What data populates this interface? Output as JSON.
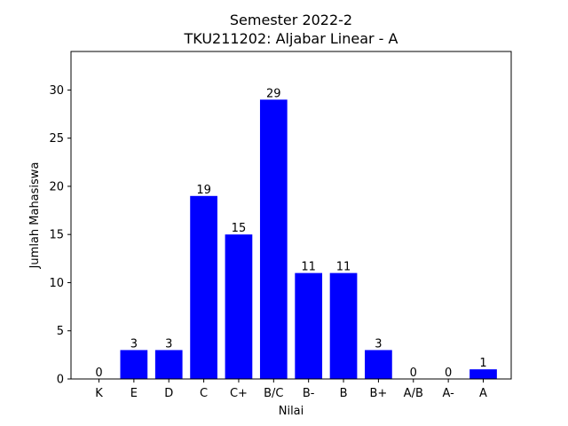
{
  "chart_data": {
    "type": "bar",
    "title": "Semester 2022-2",
    "subtitle": "TKU211202: Aljabar Linear - A",
    "xlabel": "Nilai",
    "ylabel": "Jumlah Mahasiswa",
    "categories": [
      "K",
      "E",
      "D",
      "C",
      "C+",
      "B/C",
      "B-",
      "B",
      "B+",
      "A/B",
      "A-",
      "A"
    ],
    "values": [
      0,
      3,
      3,
      19,
      15,
      29,
      11,
      11,
      3,
      0,
      0,
      1
    ],
    "value_labels": [
      "0",
      "3",
      "3",
      "19",
      "15",
      "29",
      "11",
      "11",
      "3",
      "0",
      "0",
      "1"
    ],
    "ylim": [
      0,
      34
    ],
    "yticks": [
      0,
      5,
      10,
      15,
      20,
      25,
      30
    ],
    "ytick_labels": [
      "0",
      "5",
      "10",
      "15",
      "20",
      "25",
      "30"
    ],
    "bar_color": "#0000ff",
    "grid": false,
    "legend": "none"
  }
}
